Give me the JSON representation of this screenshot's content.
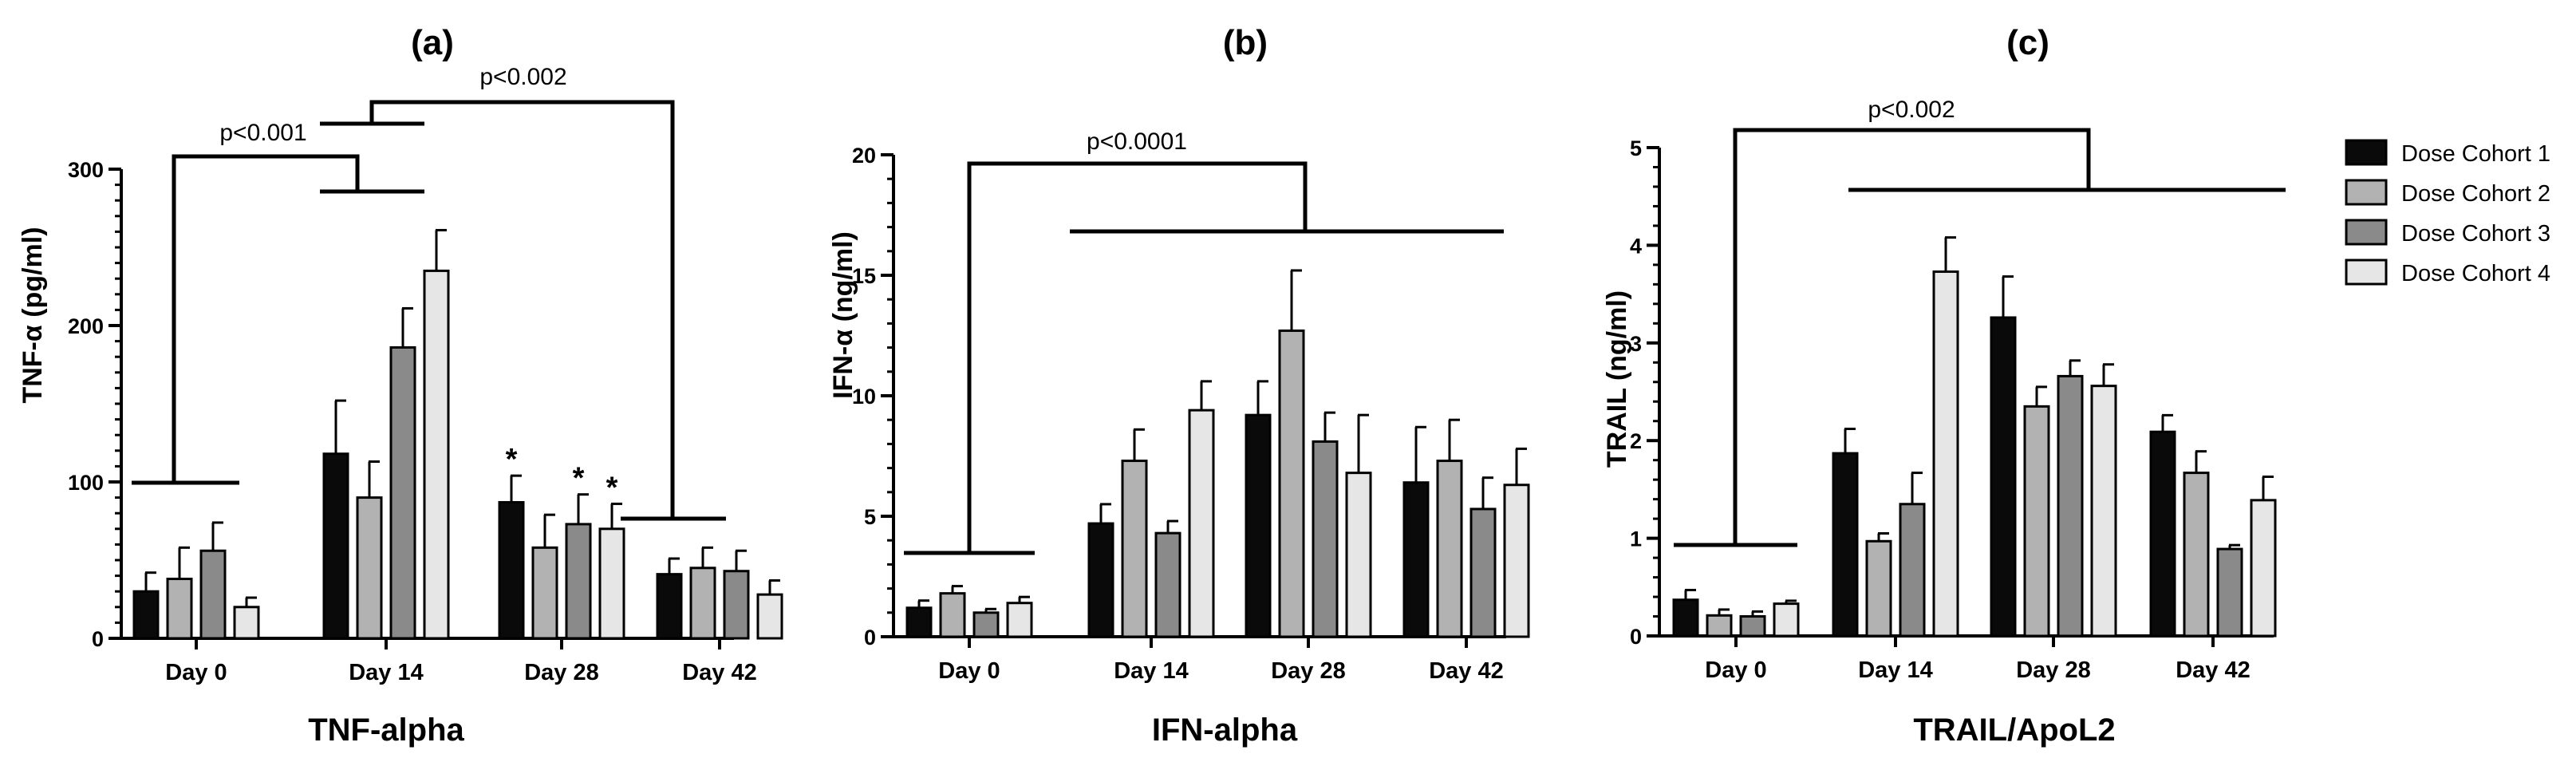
{
  "colors": [
    "#0a0a0a",
    "#b2b2b2",
    "#8a8a8a",
    "#e6e6e6"
  ],
  "legend": [
    "Dose Cohort 1",
    "Dose Cohort 2",
    "Dose Cohort 3",
    "Dose Cohort 4"
  ],
  "chart_data": [
    {
      "type": "bar",
      "title": "(a)",
      "xlabel": "TNF-alpha",
      "ylabel": "TNF-α (pg/ml)",
      "ylim": [
        0,
        300
      ],
      "yticks": [
        0,
        100,
        200,
        300
      ],
      "categories": [
        "Day 0",
        "Day 14",
        "Day 28",
        "Day 42"
      ],
      "series": [
        {
          "name": "Dose Cohort 1",
          "values": [
            30,
            118,
            87,
            41
          ],
          "errors": [
            12,
            34,
            17,
            10
          ]
        },
        {
          "name": "Dose Cohort 2",
          "values": [
            38,
            90,
            58,
            45
          ],
          "errors": [
            20,
            23,
            21,
            13
          ]
        },
        {
          "name": "Dose Cohort 3",
          "values": [
            56,
            186,
            73,
            43
          ],
          "errors": [
            18,
            25,
            19,
            13
          ]
        },
        {
          "name": "Dose Cohort 4",
          "values": [
            20,
            235,
            70,
            28
          ],
          "errors": [
            6,
            26,
            16,
            9
          ]
        }
      ],
      "stars": [
        {
          "text": "*",
          "category": 2,
          "series": 0
        },
        {
          "text": "*",
          "category": 2,
          "series": 2
        },
        {
          "text": "*",
          "category": 2,
          "series": 3
        }
      ],
      "annotations": [
        "p<0.001",
        "p<0.002"
      ]
    },
    {
      "type": "bar",
      "title": "(b)",
      "xlabel": "IFN-alpha",
      "ylabel": "IFN-α (ng/ml)",
      "ylim": [
        0,
        20
      ],
      "yticks": [
        0,
        5,
        10,
        15,
        20
      ],
      "categories": [
        "Day 0",
        "Day 14",
        "Day 28",
        "Day 42"
      ],
      "series": [
        {
          "name": "Dose Cohort 1",
          "values": [
            1.2,
            4.7,
            9.2,
            6.4
          ],
          "errors": [
            0.3,
            0.8,
            1.4,
            2.3
          ]
        },
        {
          "name": "Dose Cohort 2",
          "values": [
            1.8,
            7.3,
            12.7,
            7.3
          ],
          "errors": [
            0.3,
            1.3,
            2.5,
            1.7
          ]
        },
        {
          "name": "Dose Cohort 3",
          "values": [
            1.0,
            4.3,
            8.1,
            5.3
          ],
          "errors": [
            0.15,
            0.5,
            1.2,
            1.3
          ]
        },
        {
          "name": "Dose Cohort 4",
          "values": [
            1.4,
            9.4,
            6.8,
            6.3
          ],
          "errors": [
            0.25,
            1.2,
            2.4,
            1.5
          ]
        }
      ],
      "annotations": [
        "p<0.0001"
      ]
    },
    {
      "type": "bar",
      "title": "(c)",
      "xlabel": "TRAIL/ApoL2",
      "ylabel": "TRAIL (ng/ml)",
      "ylim": [
        0,
        5
      ],
      "yticks": [
        0,
        1,
        2,
        3,
        4,
        5
      ],
      "categories": [
        "Day 0",
        "Day 14",
        "Day 28",
        "Day 42"
      ],
      "series": [
        {
          "name": "Dose Cohort 1",
          "values": [
            0.37,
            1.87,
            3.26,
            2.09
          ],
          "errors": [
            0.1,
            0.25,
            0.42,
            0.17
          ]
        },
        {
          "name": "Dose Cohort 2",
          "values": [
            0.21,
            0.97,
            2.35,
            1.67
          ],
          "errors": [
            0.06,
            0.08,
            0.2,
            0.22
          ]
        },
        {
          "name": "Dose Cohort 3",
          "values": [
            0.2,
            1.35,
            2.66,
            0.89
          ],
          "errors": [
            0.05,
            0.32,
            0.16,
            0.04
          ]
        },
        {
          "name": "Dose Cohort 4",
          "values": [
            0.33,
            3.73,
            2.56,
            1.39
          ],
          "errors": [
            0.03,
            0.35,
            0.22,
            0.24
          ]
        }
      ],
      "annotations": [
        "p<0.002"
      ]
    }
  ]
}
